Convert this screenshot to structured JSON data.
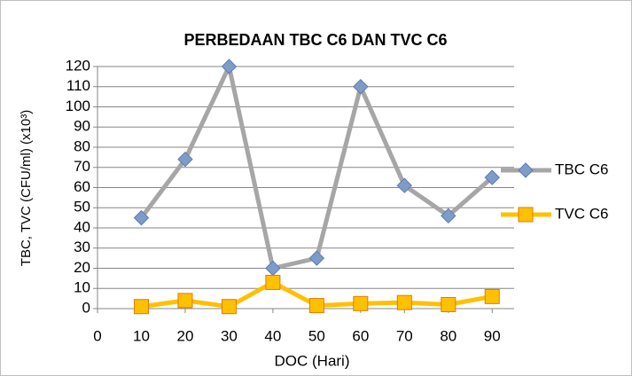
{
  "chart_data": {
    "type": "line",
    "title": "PERBEDAAN TBC C6 DAN TVC C6",
    "x_label": "DOC (Hari)",
    "y_label": "TBC, TVC (CFU/ml) (x10³)",
    "x": [
      10,
      20,
      30,
      40,
      50,
      60,
      70,
      80,
      90
    ],
    "series": [
      {
        "name": "TBC C6",
        "color": "#a6a6a6",
        "marker": "diamond",
        "marker_color": "#7f9cc9",
        "values": [
          45,
          74,
          120,
          20,
          25,
          110,
          61,
          46,
          65
        ]
      },
      {
        "name": "TVC C6",
        "color": "#ffc000",
        "marker": "square",
        "marker_color": "#ffc000",
        "values": [
          1,
          4,
          1,
          13,
          1.5,
          2.5,
          3,
          2,
          6
        ]
      }
    ],
    "xlim": [
      0,
      95
    ],
    "xticks": [
      0,
      10,
      20,
      30,
      40,
      50,
      60,
      70,
      80,
      90
    ],
    "ylim": [
      0,
      120
    ],
    "yticks": [
      0,
      10,
      20,
      30,
      40,
      50,
      60,
      70,
      80,
      90,
      100,
      110,
      120
    ],
    "grid": true,
    "legend": "right"
  }
}
